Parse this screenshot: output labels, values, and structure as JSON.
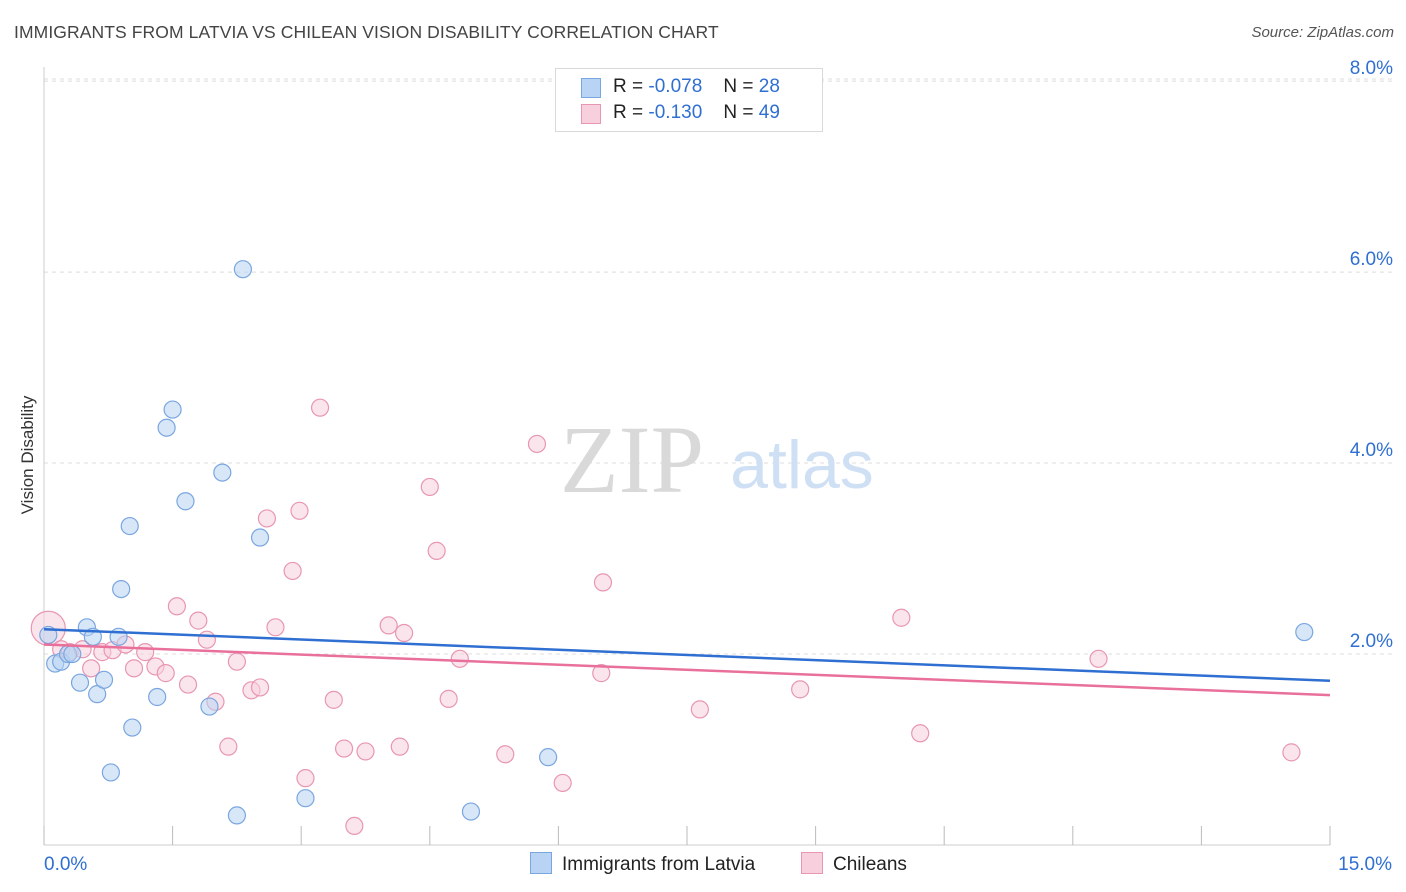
{
  "title": "IMMIGRANTS FROM LATVIA VS CHILEAN VISION DISABILITY CORRELATION CHART",
  "source": "Source: ZipAtlas.com",
  "watermark": {
    "zip": "ZIP",
    "atlas": "atlas"
  },
  "legend_stats": [
    {
      "r_label": "R =",
      "r_value": "-0.078",
      "n_label": "N =",
      "n_value": "28",
      "color": "#a9c8f0",
      "border": "#6f9fde"
    },
    {
      "r_label": "R =",
      "r_value": "-0.130",
      "n_label": "N =",
      "n_value": "49",
      "color": "#f7c0d2",
      "border": "#e88aa8"
    }
  ],
  "colors": {
    "blue_fill": "#b8d3f3",
    "blue_stroke": "#7aa6e0",
    "blue_line": "#2f6fd1",
    "pink_fill": "#f8cfdc",
    "pink_stroke": "#e896b2",
    "pink_line": "#e8709a",
    "tick_label": "#2f6fd1",
    "grid": "#dcdcdc"
  },
  "chart_data": {
    "type": "scatter",
    "title": "IMMIGRANTS FROM LATVIA VS CHILEAN VISION DISABILITY CORRELATION CHART",
    "xlabel": "",
    "ylabel": "Vision Disability",
    "xlim": [
      0,
      15
    ],
    "ylim": [
      0,
      8.2
    ],
    "x_ticks": [
      {
        "value": 0,
        "label": "0.0%"
      },
      {
        "value": 15,
        "label": "15.0%"
      }
    ],
    "y_ticks": [
      {
        "value": 2,
        "label": "2.0%"
      },
      {
        "value": 4,
        "label": "4.0%"
      },
      {
        "value": 6,
        "label": "6.0%"
      },
      {
        "value": 8,
        "label": "8.0%"
      }
    ],
    "grid": "horizontal dashed",
    "legend_position": "bottom",
    "series": [
      {
        "name": "Immigrants from Latvia",
        "trend": {
          "x": [
            0,
            15
          ],
          "y": [
            2.26,
            1.72
          ]
        },
        "points": [
          [
            0.05,
            2.2
          ],
          [
            0.13,
            1.9
          ],
          [
            0.2,
            1.92
          ],
          [
            0.28,
            2.0
          ],
          [
            0.33,
            2.0
          ],
          [
            0.42,
            1.7
          ],
          [
            0.5,
            2.28
          ],
          [
            0.57,
            2.18
          ],
          [
            0.62,
            1.58
          ],
          [
            0.7,
            1.73
          ],
          [
            0.78,
            0.76
          ],
          [
            0.87,
            2.18
          ],
          [
            0.9,
            2.68
          ],
          [
            1.0,
            3.34
          ],
          [
            1.03,
            1.23
          ],
          [
            1.32,
            1.55
          ],
          [
            1.43,
            4.37
          ],
          [
            1.5,
            4.56
          ],
          [
            1.65,
            3.6
          ],
          [
            1.93,
            1.45
          ],
          [
            2.08,
            3.9
          ],
          [
            2.25,
            0.31
          ],
          [
            2.32,
            6.03
          ],
          [
            2.52,
            3.22
          ],
          [
            3.05,
            0.49
          ],
          [
            4.98,
            0.35
          ],
          [
            5.88,
            0.92
          ],
          [
            14.7,
            2.23
          ]
        ]
      },
      {
        "name": "Chileans",
        "trend": {
          "x": [
            0,
            15
          ],
          "y": [
            2.1,
            1.57
          ]
        },
        "points": [
          [
            0.05,
            2.27
          ],
          [
            0.2,
            2.05
          ],
          [
            0.3,
            2.02
          ],
          [
            0.45,
            2.05
          ],
          [
            0.55,
            1.85
          ],
          [
            0.68,
            2.02
          ],
          [
            0.8,
            2.04
          ],
          [
            0.95,
            2.1
          ],
          [
            1.05,
            1.85
          ],
          [
            1.18,
            2.02
          ],
          [
            1.3,
            1.87
          ],
          [
            1.42,
            1.8
          ],
          [
            1.55,
            2.5
          ],
          [
            1.68,
            1.68
          ],
          [
            1.8,
            2.35
          ],
          [
            1.9,
            2.15
          ],
          [
            2.0,
            1.5
          ],
          [
            2.15,
            1.03
          ],
          [
            2.25,
            1.92
          ],
          [
            2.42,
            1.62
          ],
          [
            2.52,
            1.65
          ],
          [
            2.6,
            3.42
          ],
          [
            2.7,
            2.28
          ],
          [
            2.9,
            2.87
          ],
          [
            2.98,
            3.5
          ],
          [
            3.05,
            0.7
          ],
          [
            3.22,
            4.58
          ],
          [
            3.38,
            1.52
          ],
          [
            3.5,
            1.01
          ],
          [
            3.62,
            0.2
          ],
          [
            3.75,
            0.98
          ],
          [
            4.02,
            2.3
          ],
          [
            4.15,
            1.03
          ],
          [
            4.2,
            2.22
          ],
          [
            4.5,
            3.75
          ],
          [
            4.58,
            3.08
          ],
          [
            4.72,
            1.53
          ],
          [
            4.85,
            1.95
          ],
          [
            5.38,
            0.95
          ],
          [
            5.75,
            4.2
          ],
          [
            6.05,
            0.65
          ],
          [
            6.5,
            1.8
          ],
          [
            6.52,
            2.75
          ],
          [
            7.65,
            1.42
          ],
          [
            8.82,
            1.63
          ],
          [
            10.0,
            2.38
          ],
          [
            10.22,
            1.17
          ],
          [
            12.3,
            1.95
          ],
          [
            14.55,
            0.97
          ]
        ]
      }
    ]
  }
}
